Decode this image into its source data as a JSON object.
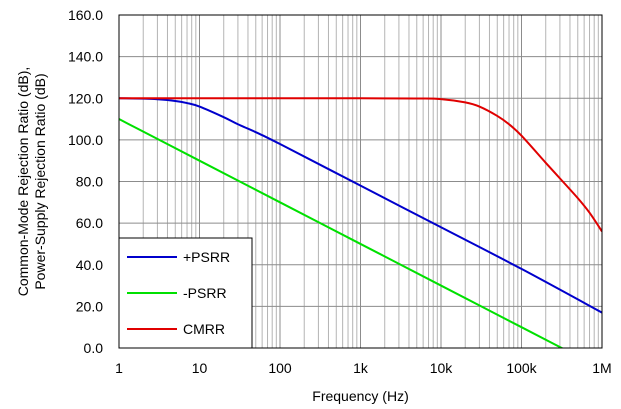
{
  "chart_data": {
    "type": "line",
    "title": "",
    "xlabel": "Frequency (Hz)",
    "ylabel_lines": [
      "Common-Mode Rejection Ratio (dB),",
      "Power-Supply Rejection Ratio (dB)"
    ],
    "x_scale": "log",
    "xlim": [
      1,
      1000000
    ],
    "ylim": [
      0,
      160
    ],
    "x_ticks": [
      1,
      10,
      100,
      1000,
      10000,
      100000,
      1000000
    ],
    "x_tick_labels": [
      "1",
      "10",
      "100",
      "1k",
      "10k",
      "100k",
      "1M"
    ],
    "y_ticks": [
      0,
      20,
      40,
      60,
      80,
      100,
      120,
      140,
      160
    ],
    "y_tick_labels": [
      "0.0",
      "20.0",
      "40.0",
      "60.0",
      "80.0",
      "100.0",
      "120.0",
      "140.0",
      "160.0"
    ],
    "grid": true,
    "legend_position": "bottom-left",
    "series": [
      {
        "name": "+PSRR",
        "color": "#0000cc",
        "x": [
          1,
          2,
          3,
          5,
          7,
          10,
          20,
          30,
          50,
          100,
          1000,
          10000,
          100000,
          1000000
        ],
        "y": [
          120,
          119.8,
          119.5,
          118.7,
          117.7,
          116.0,
          110.9,
          107.5,
          103.7,
          98.0,
          78.0,
          58.0,
          38.0,
          17.0
        ]
      },
      {
        "name": "-PSRR",
        "color": "#00e000",
        "x": [
          1,
          10,
          100,
          1000,
          10000,
          100000,
          1000000
        ],
        "y": [
          110,
          90,
          70,
          50,
          30,
          10,
          -10
        ]
      },
      {
        "name": "CMRR",
        "color": "#e00000",
        "x": [
          1,
          100,
          1000,
          5000,
          10000,
          20000,
          30000,
          50000,
          70000,
          100000,
          200000,
          300000,
          500000,
          700000,
          1000000
        ],
        "y": [
          120,
          120,
          120,
          119.9,
          119.6,
          118.0,
          116.0,
          111.5,
          107.5,
          102.0,
          89.0,
          81.5,
          72.0,
          65.0,
          56.0
        ]
      }
    ]
  }
}
